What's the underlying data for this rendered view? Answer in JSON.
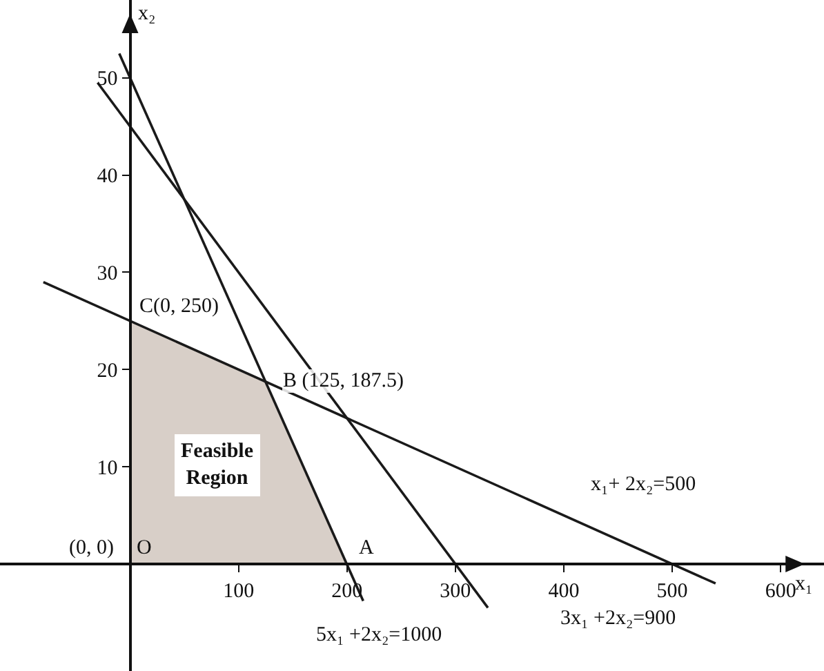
{
  "chart_data": {
    "type": "line",
    "xlabel": "x₁",
    "ylabel": "x₂",
    "xlim": [
      -120,
      640
    ],
    "ylim": [
      -11,
      58
    ],
    "xticks": [
      100,
      200,
      300,
      400,
      500,
      600
    ],
    "yticks": [
      10,
      20,
      30,
      40,
      50
    ],
    "grid": false,
    "marker": "none",
    "line_style": "solid",
    "series": [
      {
        "type": "area",
        "color": "#d8cfc8",
        "x": [
          0,
          200,
          125,
          0
        ],
        "values": [
          0,
          0,
          18.8,
          25
        ]
      },
      {
        "color": "#1a1a1a",
        "x": [
          -80,
          540
        ],
        "values": [
          29,
          -2
        ]
      },
      {
        "color": "#1a1a1a",
        "x": [
          -30,
          330
        ],
        "values": [
          49.5,
          -4.5
        ]
      },
      {
        "color": "#1a1a1a",
        "x": [
          -10,
          215
        ],
        "values": [
          52.5,
          -3.8
        ]
      }
    ],
    "annotations": [
      {
        "text": "C(0, 250)",
        "x": 0,
        "y": 25
      },
      {
        "text": "B (125, 187.5)",
        "x": 125,
        "y": 18.8
      },
      {
        "text": "A",
        "x": 200,
        "y": 0
      },
      {
        "text": "(0, 0)",
        "x": 0,
        "y": 0
      },
      {
        "text": "O",
        "x": 0,
        "y": 0
      },
      "Feasible Region",
      "x₁+ 2x₂=500",
      "3x₁ +2x₂=900",
      "5x₁ +2x₂=1000"
    ]
  }
}
